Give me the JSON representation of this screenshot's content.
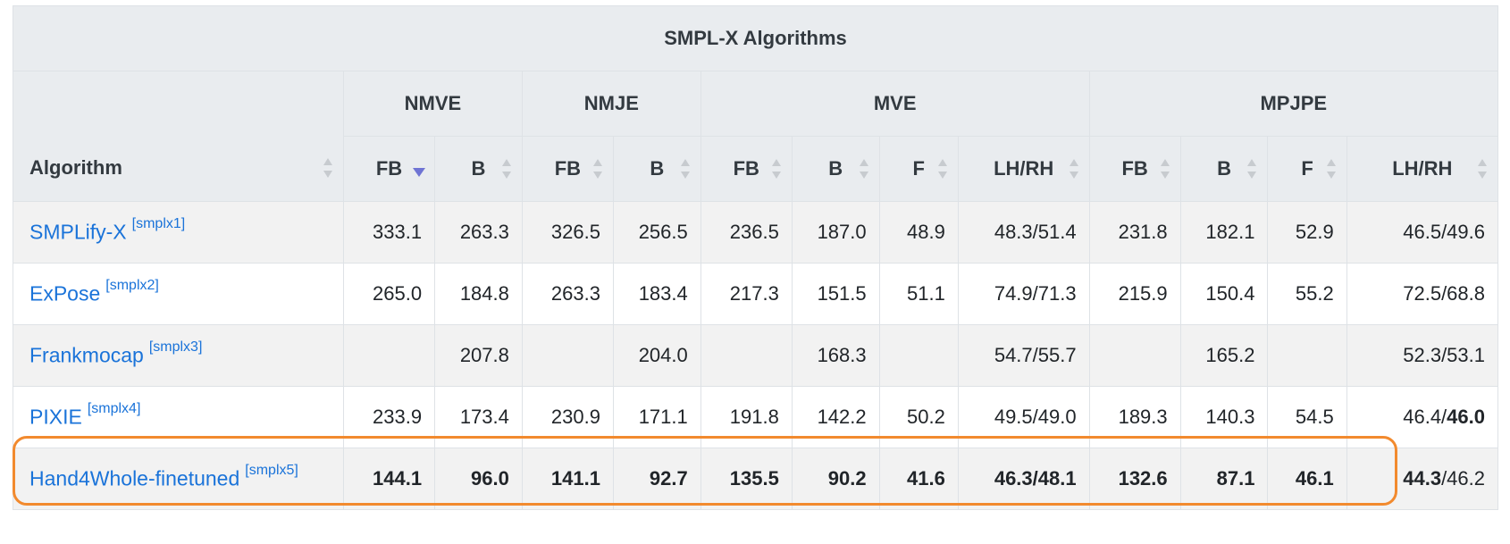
{
  "table": {
    "title": "SMPL-X Algorithms",
    "algorithm_header": "Algorithm",
    "groups": [
      "NMVE",
      "NMJE",
      "MVE",
      "MPJPE"
    ],
    "columns": [
      "FB",
      "B",
      "FB",
      "B",
      "FB",
      "B",
      "F",
      "LH/RH",
      "FB",
      "B",
      "F",
      "LH/RH"
    ],
    "sorted_column": "NMVE FB (descending)",
    "rows": [
      {
        "name": "SMPLify-X",
        "ref": "[smplx1]",
        "cells": [
          "333.1",
          "263.3",
          "326.5",
          "256.5",
          "236.5",
          "187.0",
          "48.9",
          "48.3/51.4",
          "231.8",
          "182.1",
          "52.9",
          "46.5/49.6"
        ]
      },
      {
        "name": "ExPose",
        "ref": "[smplx2]",
        "cells": [
          "265.0",
          "184.8",
          "263.3",
          "183.4",
          "217.3",
          "151.5",
          "51.1",
          "74.9/71.3",
          "215.9",
          "150.4",
          "55.2",
          "72.5/68.8"
        ]
      },
      {
        "name": "Frankmocap",
        "ref": "[smplx3]",
        "cells": [
          "",
          "207.8",
          "",
          "204.0",
          "",
          "168.3",
          "",
          "54.7/55.7",
          "",
          "165.2",
          "",
          "52.3/53.1"
        ]
      },
      {
        "name": "PIXIE",
        "ref": "[smplx4]",
        "cells": [
          "233.9",
          "173.4",
          "230.9",
          "171.1",
          "191.8",
          "142.2",
          "50.2",
          "49.5/49.0",
          "189.3",
          "140.3",
          "54.5",
          "46.4/46.0"
        ]
      },
      {
        "name": "Hand4Whole-finetuned",
        "ref": "[smplx5]",
        "cells": [
          "144.1",
          "96.0",
          "141.1",
          "92.7",
          "135.5",
          "90.2",
          "41.6",
          "46.3/48.1",
          "132.6",
          "87.1",
          "46.1",
          "44.3/46.2"
        ]
      }
    ]
  },
  "highlight_color": "#f28a2e",
  "link_color": "#1a73d9",
  "icons": {
    "sort": "sort-arrows-icon",
    "sort_active": "sort-desc-icon"
  }
}
